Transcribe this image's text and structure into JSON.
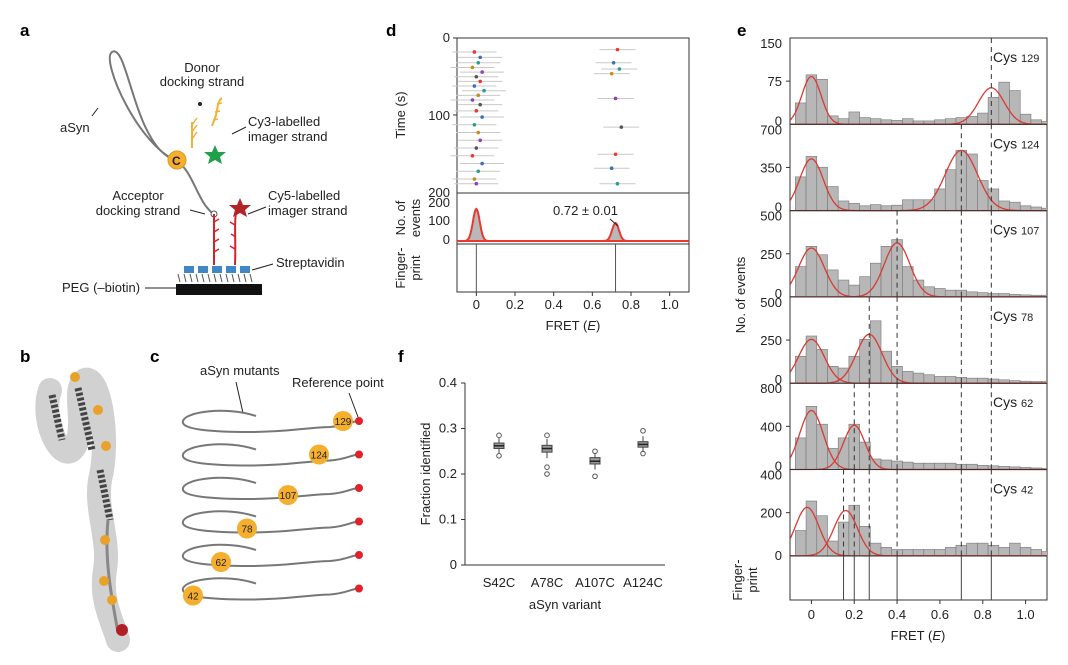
{
  "panel_letters": {
    "a": "a",
    "b": "b",
    "c": "c",
    "d": "d",
    "e": "e",
    "f": "f"
  },
  "panel_a": {
    "asyn": "aSyn",
    "donor_strand": [
      "Donor",
      "docking strand"
    ],
    "cy3": [
      "Cy3-labelled",
      "imager strand"
    ],
    "acceptor_strand": [
      "Acceptor",
      "docking strand"
    ],
    "cy5": [
      "Cy5-labelled",
      "imager strand"
    ],
    "streptavidin": "Streptavidin",
    "peg": "PEG (–biotin)",
    "c_marker": "C",
    "colors": {
      "donor": "#f0b23a",
      "acceptor": "#d2232a",
      "cy3_star": "#21a04a",
      "cy5_star": "#b42326",
      "streptavidin": "#3f88c5",
      "surface": "#111111"
    }
  },
  "panel_c": {
    "asyn_mutants": "aSyn mutants",
    "reference_point": "Reference point",
    "positions": [
      "129",
      "124",
      "107",
      "78",
      "62",
      "42"
    ],
    "colors": {
      "site": "#f5ae2e",
      "reference": "#e0232a",
      "line": "#777777"
    }
  },
  "chart_data": [
    {
      "id": "d",
      "type": "scatter",
      "ylabel": "Time (s)",
      "xlabel": "FRET (E)",
      "xlabel_main": "FRET (",
      "xlabel_var": "E",
      "xlabel_end": ")",
      "ylim": [
        0,
        200
      ],
      "y_ticks": [
        "0",
        "100",
        "200"
      ],
      "xlim": [
        -0.1,
        1.1
      ],
      "x_ticks": [
        "0",
        "0.2",
        "0.4",
        "0.6",
        "0.8",
        "1.0"
      ],
      "events_ylabel": [
        "No. of",
        "events"
      ],
      "events_ticks": [
        "200",
        "100",
        "0"
      ],
      "fingerprint_label": [
        "Finger-",
        "print"
      ],
      "annotation": "0.72 ± 0.01",
      "peaks": [
        0.0,
        0.72
      ],
      "points_low": [
        [
          -0.01,
          18
        ],
        [
          0.02,
          25
        ],
        [
          0.01,
          32
        ],
        [
          -0.02,
          38
        ],
        [
          0.03,
          44
        ],
        [
          0.0,
          50
        ],
        [
          0.02,
          56
        ],
        [
          -0.01,
          62
        ],
        [
          0.04,
          68
        ],
        [
          0.01,
          74
        ],
        [
          -0.02,
          80
        ],
        [
          0.02,
          86
        ],
        [
          0.0,
          94
        ],
        [
          0.03,
          102
        ],
        [
          -0.01,
          112
        ],
        [
          0.01,
          122
        ],
        [
          0.02,
          132
        ],
        [
          0.0,
          142
        ],
        [
          -0.02,
          152
        ],
        [
          0.03,
          162
        ],
        [
          0.01,
          172
        ],
        [
          -0.01,
          182
        ],
        [
          0.0,
          188
        ]
      ],
      "points_high": [
        [
          0.73,
          15
        ],
        [
          0.71,
          32
        ],
        [
          0.74,
          40
        ],
        [
          0.7,
          46
        ],
        [
          0.72,
          78
        ],
        [
          0.75,
          115
        ],
        [
          0.72,
          150
        ],
        [
          0.7,
          168
        ],
        [
          0.73,
          188
        ]
      ],
      "colors": {
        "curve": "#e8382f",
        "fill": "#b8b8b8"
      }
    },
    {
      "id": "e",
      "type": "bar",
      "ylabel": "No. of events",
      "xlabel_main": "FRET (",
      "xlabel_var": "E",
      "xlabel_end": ")",
      "xlim": [
        -0.1,
        1.1
      ],
      "x_ticks": [
        "0",
        "0.2",
        "0.4",
        "0.6",
        "0.8",
        "1.0"
      ],
      "fingerprint_label": [
        "Finger-",
        "print"
      ],
      "bin_width": 0.05,
      "bin_start": -0.075,
      "fingerprint_lines": [
        0.15,
        0.2,
        0.27,
        0.4,
        0.7,
        0.84
      ],
      "series": [
        {
          "name": "Cys",
          "pos": "129",
          "ymax": 150,
          "ticks": [
            "150",
            "75",
            "0"
          ],
          "values": [
            38,
            88,
            80,
            15,
            10,
            22,
            12,
            10,
            8,
            7,
            10,
            6,
            6,
            8,
            10,
            12,
            14,
            20,
            48,
            75,
            60,
            18,
            8,
            5
          ],
          "peaks": [
            [
              0.0,
              85,
              0.045
            ],
            [
              0.84,
              65,
              0.06
            ]
          ],
          "dashed": [
            0.84
          ]
        },
        {
          "name": "Cys",
          "pos": "124",
          "ymax": 700,
          "ticks": [
            "700",
            "350",
            "0"
          ],
          "values": [
            280,
            450,
            360,
            200,
            80,
            60,
            40,
            50,
            40,
            45,
            90,
            90,
            90,
            180,
            340,
            500,
            470,
            250,
            180,
            80,
            70,
            40,
            30,
            20
          ],
          "peaks": [
            [
              0.0,
              430,
              0.055
            ],
            [
              0.7,
              500,
              0.075
            ]
          ],
          "dashed": [
            0.7,
            0.84
          ]
        },
        {
          "name": "Cys",
          "pos": "107",
          "ymax": 500,
          "ticks": [
            "500",
            "250",
            "0"
          ],
          "values": [
            180,
            300,
            250,
            160,
            100,
            70,
            120,
            200,
            300,
            340,
            180,
            100,
            60,
            50,
            40,
            40,
            30,
            25,
            20,
            20,
            15,
            12,
            10,
            10
          ],
          "peaks": [
            [
              0.0,
              290,
              0.06
            ],
            [
              0.4,
              320,
              0.06
            ]
          ],
          "dashed": [
            0.4,
            0.7,
            0.84
          ]
        },
        {
          "name": "Cys",
          "pos": "78",
          "ymax": 500,
          "ticks": [
            "500",
            "250",
            "0"
          ],
          "values": [
            160,
            280,
            200,
            100,
            90,
            160,
            260,
            370,
            190,
            100,
            70,
            60,
            50,
            40,
            40,
            35,
            30,
            30,
            25,
            20,
            15,
            12,
            10,
            10
          ],
          "peaks": [
            [
              0.0,
              260,
              0.06
            ],
            [
              0.27,
              290,
              0.06
            ]
          ],
          "dashed": [
            0.27,
            0.4,
            0.7,
            0.84
          ]
        },
        {
          "name": "Cys",
          "pos": "62",
          "ymax": 800,
          "ticks": [
            "800",
            "400",
            "0"
          ],
          "values": [
            300,
            600,
            430,
            200,
            300,
            430,
            260,
            100,
            90,
            80,
            70,
            60,
            60,
            60,
            60,
            50,
            50,
            40,
            35,
            30,
            25,
            20,
            15,
            10
          ],
          "peaks": [
            [
              0.0,
              560,
              0.055
            ],
            [
              0.2,
              420,
              0.05
            ]
          ],
          "dashed": [
            0.2,
            0.27,
            0.4,
            0.7,
            0.84
          ]
        },
        {
          "name": "Cys",
          "pos": "42",
          "ymax": 400,
          "ticks": [
            "400",
            "200",
            "0"
          ],
          "values": [
            120,
            260,
            190,
            70,
            160,
            240,
            140,
            60,
            40,
            30,
            30,
            30,
            30,
            30,
            40,
            50,
            60,
            60,
            50,
            40,
            60,
            40,
            30,
            20
          ],
          "peaks": [
            [
              -0.02,
              230,
              0.055
            ],
            [
              0.16,
              215,
              0.055
            ]
          ],
          "dashed": [
            0.15,
            0.2,
            0.27,
            0.4,
            0.7,
            0.84
          ]
        }
      ],
      "colors": {
        "bar": "#b7b7b7",
        "curve": "#d93a33"
      }
    },
    {
      "id": "f",
      "type": "scatter",
      "ylabel": "Fraction identified",
      "xlabel": "aSyn variant",
      "ylim": [
        0,
        0.4
      ],
      "y_ticks": [
        "0",
        "0.1",
        "0.2",
        "0.3",
        "0.4"
      ],
      "categories": [
        "S42C",
        "A78C",
        "A107C",
        "A124C"
      ],
      "series": [
        {
          "name": "S42C",
          "median": 0.262,
          "q1": 0.256,
          "q3": 0.268,
          "min": 0.245,
          "max": 0.28,
          "outliers": [
            0.24,
            0.285
          ]
        },
        {
          "name": "A78C",
          "median": 0.256,
          "q1": 0.248,
          "q3": 0.263,
          "min": 0.235,
          "max": 0.277,
          "outliers": [
            0.2,
            0.215,
            0.285
          ]
        },
        {
          "name": "A107C",
          "median": 0.228,
          "q1": 0.222,
          "q3": 0.236,
          "min": 0.21,
          "max": 0.245,
          "outliers": [
            0.195,
            0.25
          ]
        },
        {
          "name": "A124C",
          "median": 0.265,
          "q1": 0.259,
          "q3": 0.271,
          "min": 0.248,
          "max": 0.283,
          "outliers": [
            0.245,
            0.295
          ]
        }
      ]
    }
  ]
}
